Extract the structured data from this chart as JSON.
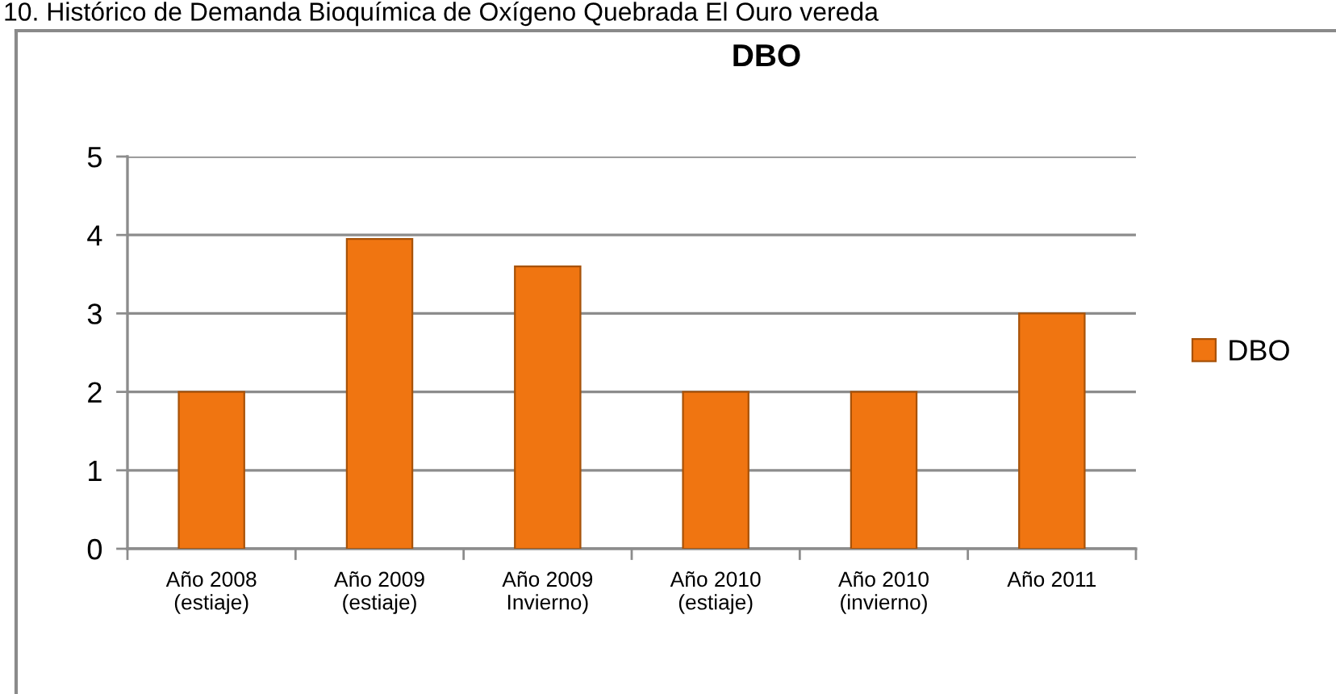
{
  "chart_data": {
    "type": "bar",
    "title": "DBO",
    "annotations": [
      "10. Histórico de Demanda Bioquímica de Oxígeno Quebrada El Ouro vereda"
    ],
    "categories": [
      "Año 2008\n(estiaje)",
      "Año 2009\n(estiaje)",
      "Año 2009\nInvierno)",
      "Año 2010\n(estiaje)",
      "Año 2010\n(invierno)",
      "Año 2011"
    ],
    "series": [
      {
        "name": "DBO",
        "color": "#f07511",
        "values": [
          2,
          3.95,
          3.6,
          2,
          2,
          3
        ]
      }
    ],
    "ylim": [
      0,
      5
    ],
    "yticks": [
      0,
      1,
      2,
      3,
      4,
      5
    ],
    "grid": "y",
    "legend": "right"
  }
}
